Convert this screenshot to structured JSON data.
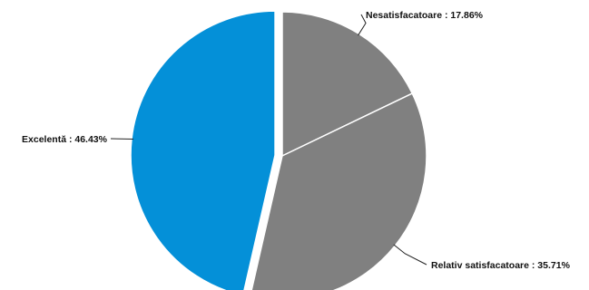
{
  "chart_data": {
    "type": "pie",
    "slices": [
      {
        "label": "Nesatisfacatoare",
        "value": 17.86,
        "label_text": "Nesatisfacatoare : 17.86%",
        "color": "#808080"
      },
      {
        "label": "Relativ satisfacatoare",
        "value": 35.71,
        "label_text": "Relativ satisfacatoare : 35.71%",
        "color": "#808080"
      },
      {
        "label": "Excelentă",
        "value": 46.43,
        "label_text": "Excelentă : 46.43%",
        "color": "#0490d8",
        "exploded": true
      }
    ],
    "start_angle_deg": 0,
    "direction": "clockwise",
    "slice_border_color": "#ffffff"
  }
}
